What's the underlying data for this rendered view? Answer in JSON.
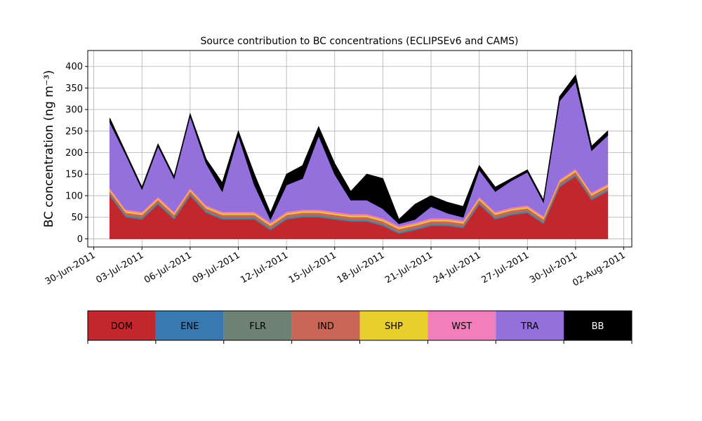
{
  "chart_data": {
    "type": "stacked-area",
    "title": "Source contribution to BC concentrations (ECLIPSEv6 and CAMS)",
    "ylabel": "BC concentration (ng m⁻³)",
    "x": [
      "2011-07-01",
      "2011-07-02",
      "2011-07-03",
      "2011-07-04",
      "2011-07-05",
      "2011-07-06",
      "2011-07-07",
      "2011-07-08",
      "2011-07-09",
      "2011-07-10",
      "2011-07-11",
      "2011-07-12",
      "2011-07-13",
      "2011-07-14",
      "2011-07-15",
      "2011-07-16",
      "2011-07-17",
      "2011-07-18",
      "2011-07-19",
      "2011-07-20",
      "2011-07-21",
      "2011-07-22",
      "2011-07-23",
      "2011-07-24",
      "2011-07-25",
      "2011-07-26",
      "2011-07-27",
      "2011-07-28",
      "2011-07-29",
      "2011-07-30",
      "2011-07-31",
      "2011-08-01"
    ],
    "series": [
      {
        "name": "DOM",
        "color": "#c1272d",
        "values": [
          100,
          50,
          45,
          80,
          45,
          100,
          60,
          45,
          45,
          45,
          20,
          45,
          50,
          50,
          45,
          40,
          40,
          30,
          12,
          20,
          30,
          30,
          25,
          80,
          45,
          55,
          60,
          35,
          120,
          145,
          90,
          110
        ]
      },
      {
        "name": "ENE",
        "color": "#3a78b0",
        "values": [
          2,
          2,
          2,
          2,
          2,
          2,
          2,
          2,
          2,
          2,
          2,
          2,
          2,
          2,
          2,
          2,
          2,
          2,
          2,
          2,
          2,
          2,
          2,
          2,
          2,
          2,
          2,
          2,
          2,
          2,
          2,
          2
        ]
      },
      {
        "name": "FLR",
        "color": "#6e8172",
        "values": [
          3,
          3,
          3,
          3,
          3,
          3,
          3,
          3,
          3,
          3,
          3,
          3,
          3,
          3,
          3,
          3,
          3,
          3,
          3,
          3,
          3,
          3,
          3,
          3,
          3,
          3,
          3,
          3,
          3,
          3,
          3,
          3
        ]
      },
      {
        "name": "IND",
        "color": "#c96555",
        "values": [
          6,
          6,
          6,
          6,
          6,
          6,
          6,
          6,
          6,
          6,
          6,
          6,
          6,
          6,
          6,
          6,
          6,
          6,
          6,
          6,
          6,
          6,
          6,
          6,
          6,
          6,
          6,
          6,
          6,
          6,
          6,
          6
        ]
      },
      {
        "name": "SHP",
        "color": "#e8cf2e",
        "values": [
          3,
          3,
          3,
          3,
          3,
          3,
          3,
          3,
          3,
          3,
          3,
          3,
          3,
          3,
          3,
          3,
          3,
          3,
          3,
          3,
          3,
          3,
          3,
          3,
          3,
          3,
          3,
          3,
          3,
          3,
          3,
          3
        ]
      },
      {
        "name": "WST",
        "color": "#f07fbb",
        "values": [
          4,
          4,
          4,
          4,
          4,
          4,
          4,
          4,
          4,
          4,
          4,
          4,
          4,
          4,
          4,
          4,
          4,
          4,
          4,
          4,
          4,
          4,
          4,
          4,
          4,
          4,
          4,
          4,
          4,
          4,
          4,
          4
        ]
      },
      {
        "name": "TRA",
        "color": "#9370db",
        "values": [
          152,
          127,
          52,
          117,
          77,
          167,
          97,
          47,
          177,
          62,
          7,
          62,
          72,
          172,
          87,
          32,
          32,
          22,
          5,
          7,
          27,
          12,
          7,
          62,
          47,
          62,
          77,
          32,
          182,
          202,
          97,
          112
        ]
      },
      {
        "name": "BB",
        "color": "#000000",
        "values": [
          10,
          5,
          5,
          5,
          5,
          5,
          10,
          20,
          10,
          25,
          15,
          25,
          30,
          20,
          25,
          20,
          60,
          70,
          10,
          35,
          25,
          25,
          25,
          10,
          10,
          5,
          5,
          5,
          10,
          15,
          10,
          10
        ]
      }
    ],
    "xlim": [
      "2011-06-29T15:00",
      "2011-08-02T12:00"
    ],
    "xticks": [
      {
        "value": "2011-06-30",
        "label": "30-Jun-2011"
      },
      {
        "value": "2011-07-03",
        "label": "03-Jul-2011"
      },
      {
        "value": "2011-07-06",
        "label": "06-Jul-2011"
      },
      {
        "value": "2011-07-09",
        "label": "09-Jul-2011"
      },
      {
        "value": "2011-07-12",
        "label": "12-Jul-2011"
      },
      {
        "value": "2011-07-15",
        "label": "15-Jul-2011"
      },
      {
        "value": "2011-07-18",
        "label": "18-Jul-2011"
      },
      {
        "value": "2011-07-21",
        "label": "21-Jul-2011"
      },
      {
        "value": "2011-07-24",
        "label": "24-Jul-2011"
      },
      {
        "value": "2011-07-27",
        "label": "27-Jul-2011"
      },
      {
        "value": "2011-07-30",
        "label": "30-Jul-2011"
      },
      {
        "value": "2011-08-02",
        "label": "02-Aug-2011"
      }
    ],
    "ylim": [
      -19,
      437
    ],
    "yticks": [
      0,
      50,
      100,
      150,
      200,
      250,
      300,
      350,
      400
    ],
    "grid": true
  }
}
